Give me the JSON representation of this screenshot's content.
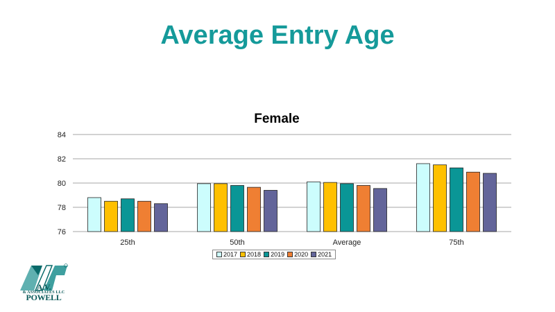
{
  "slide": {
    "title": "Average Entry Age"
  },
  "logo": {
    "name": "A.V. POWELL",
    "sub": "& ASSOCIATES LLC",
    "mark": "AVP",
    "registered": "®"
  },
  "colors": {
    "title": "#159a9a",
    "series": [
      "#ccfdfd",
      "#ffc000",
      "#0a9696",
      "#ef7f33",
      "#63659a"
    ],
    "grid": "#a6a6a6"
  },
  "chart_data": {
    "type": "bar",
    "title": "Female",
    "xlabel": "",
    "ylabel": "",
    "categories": [
      "25th",
      "50th",
      "Average",
      "75th"
    ],
    "ylim": [
      76,
      84
    ],
    "yticks": [
      76,
      78,
      80,
      82,
      84
    ],
    "grid": true,
    "legend": "bottom",
    "series": [
      {
        "name": "2017",
        "values": [
          78.8,
          79.95,
          80.1,
          81.6
        ]
      },
      {
        "name": "2018",
        "values": [
          78.5,
          79.95,
          80.05,
          81.5
        ]
      },
      {
        "name": "2019",
        "values": [
          78.7,
          79.8,
          79.95,
          81.25
        ]
      },
      {
        "name": "2020",
        "values": [
          78.5,
          79.65,
          79.8,
          80.9
        ]
      },
      {
        "name": "2021",
        "values": [
          78.3,
          79.4,
          79.55,
          80.8
        ]
      }
    ]
  }
}
